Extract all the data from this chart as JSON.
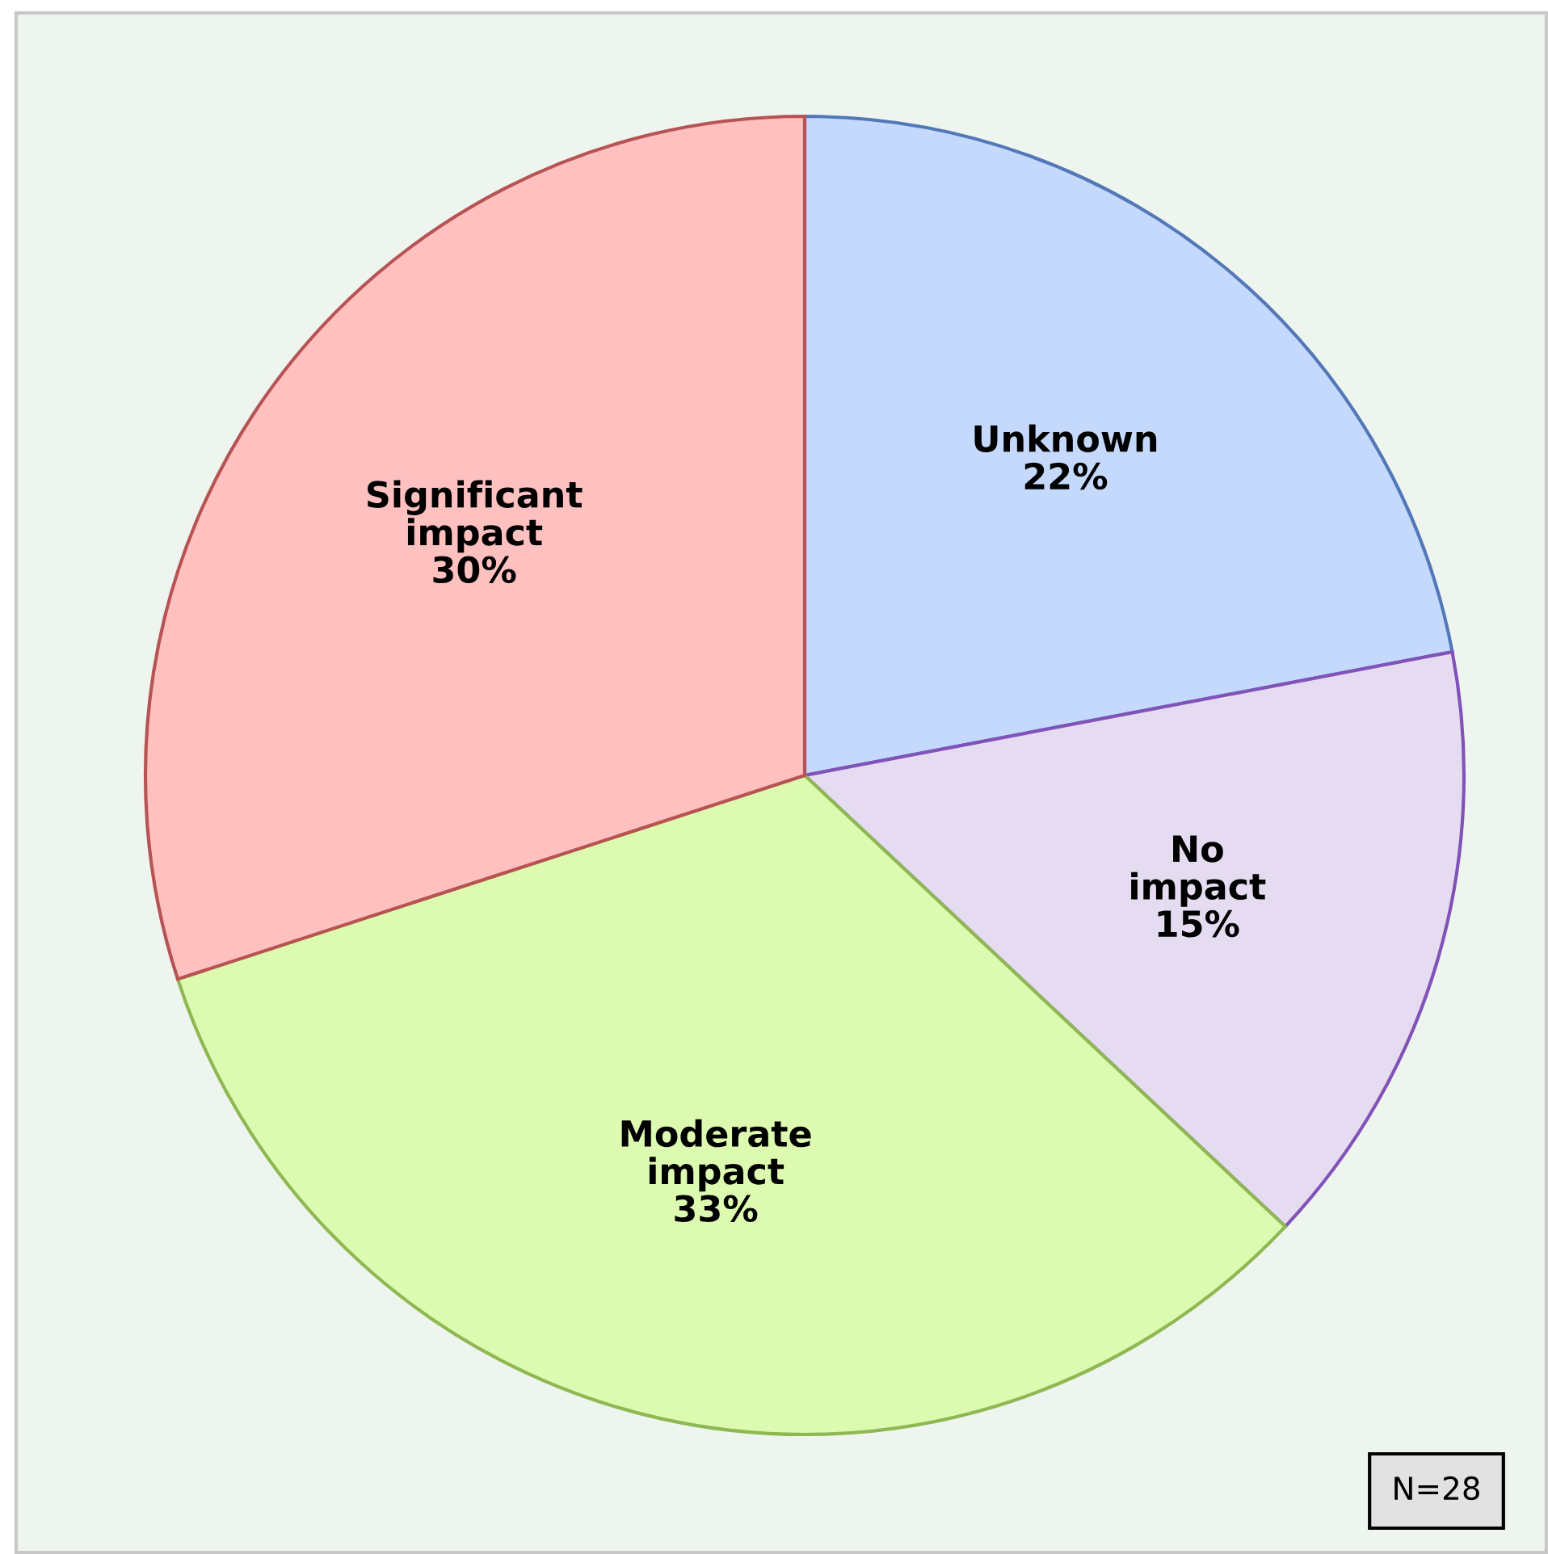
{
  "chart_data": {
    "type": "pie",
    "categories": [
      "Unknown",
      "No impact",
      "Moderate impact",
      "Significant impact"
    ],
    "values": [
      22,
      15,
      33,
      30
    ],
    "value_labels": [
      "22%",
      "15%",
      "33%",
      "30%"
    ],
    "colors": [
      "#c4d9fc",
      "#e6dcf2",
      "#ddfbb0",
      "#ffc0c0"
    ],
    "annotations": [
      "N=28"
    ]
  }
}
